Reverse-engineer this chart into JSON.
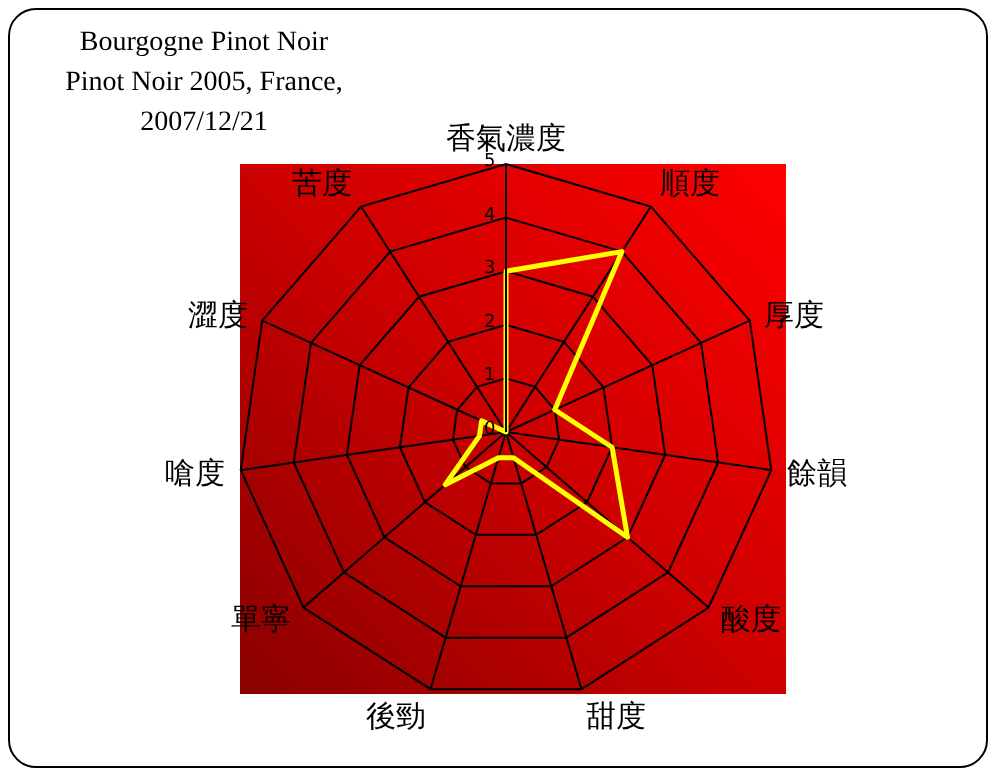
{
  "chart_data": {
    "type": "radar",
    "title": "Bourgogne Pinot Noir\nPinot Noir 2005, France,\n2007/12/21",
    "categories": [
      "香氣濃度",
      "順度",
      "厚度",
      "餘韻",
      "酸度",
      "甜度",
      "後勁",
      "單寧",
      "嗆度",
      "澀度",
      "苦度"
    ],
    "series": [
      {
        "color": "#ffff00",
        "values": [
          3,
          4,
          1,
          2,
          3,
          0.5,
          0.5,
          1.5,
          0.5,
          0.5,
          0
        ]
      }
    ],
    "ylim": [
      0,
      5
    ],
    "yticks": [
      0,
      1,
      2,
      3,
      4,
      5
    ],
    "grid": true,
    "marker": "none",
    "line_style": "solid"
  }
}
